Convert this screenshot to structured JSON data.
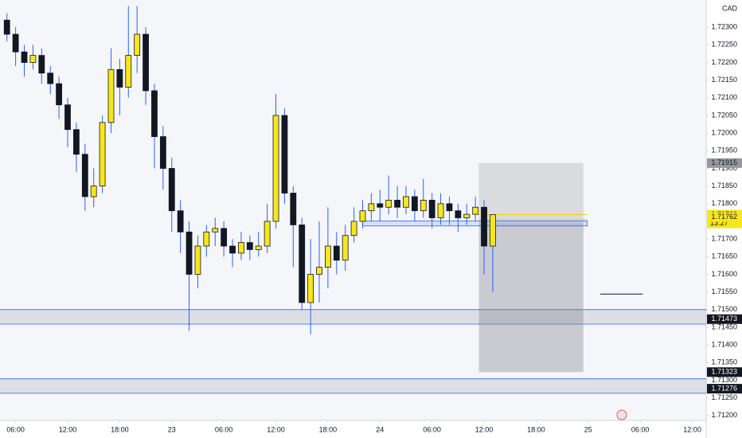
{
  "chart_data": {
    "type": "candlestick",
    "currency": "CAD",
    "xlim": [
      4.2,
      85.6
    ],
    "ylim": [
      1.71186,
      1.72377
    ],
    "xticks": [
      {
        "value": 6,
        "label": "06:00"
      },
      {
        "value": 12,
        "label": "12:00"
      },
      {
        "value": 18,
        "label": "18:00"
      },
      {
        "value": 24,
        "label": "23"
      },
      {
        "value": 30,
        "label": "06:00"
      },
      {
        "value": 36,
        "label": "12:00"
      },
      {
        "value": 42,
        "label": "18:00"
      },
      {
        "value": 48,
        "label": "24"
      },
      {
        "value": 54,
        "label": "06:00"
      },
      {
        "value": 60,
        "label": "12:00"
      },
      {
        "value": 66,
        "label": "18:00"
      },
      {
        "value": 72,
        "label": "25"
      },
      {
        "value": 78,
        "label": "06:00"
      },
      {
        "value": 84,
        "label": "12:00"
      }
    ],
    "yticks": [
      {
        "value": 1.723,
        "label": "1.72300"
      },
      {
        "value": 1.7225,
        "label": "1.72250"
      },
      {
        "value": 1.722,
        "label": "1.72200"
      },
      {
        "value": 1.7215,
        "label": "1.72150"
      },
      {
        "value": 1.721,
        "label": "1.72100"
      },
      {
        "value": 1.7205,
        "label": "1.72050"
      },
      {
        "value": 1.72,
        "label": "1.72000"
      },
      {
        "value": 1.7195,
        "label": "1.71950"
      },
      {
        "value": 1.719,
        "label": "1.71900"
      },
      {
        "value": 1.7185,
        "label": "1.71850"
      },
      {
        "value": 1.718,
        "label": "1.71800"
      },
      {
        "value": 1.717,
        "label": "1.71700"
      },
      {
        "value": 1.7165,
        "label": "1.71650"
      },
      {
        "value": 1.716,
        "label": "1.71600"
      },
      {
        "value": 1.7155,
        "label": "1.71550"
      },
      {
        "value": 1.715,
        "label": "1.71500"
      },
      {
        "value": 1.7145,
        "label": "1.71450"
      },
      {
        "value": 1.714,
        "label": "1.71400"
      },
      {
        "value": 1.7135,
        "label": "1.71350"
      },
      {
        "value": 1.713,
        "label": "1.71300"
      },
      {
        "value": 1.7125,
        "label": "1.71250"
      },
      {
        "value": 1.712,
        "label": "1.71200"
      }
    ],
    "grid": false,
    "up_color": "#f7e61b",
    "down_color": "#131722",
    "wick_color": "#2962ff",
    "x": [
      5,
      6,
      7,
      8,
      9,
      10,
      11,
      12,
      13,
      14,
      15,
      16,
      17,
      18,
      19,
      20,
      21,
      22,
      23,
      24,
      25,
      26,
      27,
      28,
      29,
      30,
      31,
      32,
      33,
      34,
      35,
      36,
      37,
      38,
      39,
      40,
      41,
      42,
      43,
      44,
      45,
      46,
      47,
      48,
      49,
      50,
      51,
      52,
      53,
      54,
      55,
      56,
      57,
      58,
      59,
      60,
      61
    ],
    "open": [
      1.7232,
      1.7228,
      1.7223,
      1.722,
      1.7222,
      1.7217,
      1.7214,
      1.7208,
      1.7201,
      1.7194,
      1.7182,
      1.7185,
      1.7203,
      1.7218,
      1.7213,
      1.7222,
      1.7228,
      1.7212,
      1.7199,
      1.719,
      1.7178,
      1.7172,
      1.716,
      1.7168,
      1.7172,
      1.7173,
      1.7168,
      1.7166,
      1.7169,
      1.7167,
      1.7168,
      1.7175,
      1.7205,
      1.7183,
      1.7174,
      1.7152,
      1.716,
      1.7162,
      1.7168,
      1.7164,
      1.7171,
      1.7175,
      1.7178,
      1.718,
      1.7179,
      1.7181,
      1.7179,
      1.7182,
      1.7178,
      1.7181,
      1.7176,
      1.718,
      1.7178,
      1.7176,
      1.7177,
      1.7179,
      1.7168
    ],
    "high": [
      1.7234,
      1.723,
      1.7225,
      1.7225,
      1.7224,
      1.7219,
      1.7216,
      1.721,
      1.7203,
      1.7197,
      1.719,
      1.7205,
      1.7224,
      1.7221,
      1.7236,
      1.7236,
      1.723,
      1.7214,
      1.7202,
      1.7193,
      1.7181,
      1.7175,
      1.7171,
      1.7174,
      1.7176,
      1.7175,
      1.717,
      1.7172,
      1.7171,
      1.7172,
      1.718,
      1.7211,
      1.7207,
      1.7185,
      1.7176,
      1.717,
      1.7175,
      1.7179,
      1.7172,
      1.7174,
      1.7179,
      1.7181,
      1.7183,
      1.7184,
      1.7188,
      1.7185,
      1.7185,
      1.7184,
      1.7187,
      1.7183,
      1.7183,
      1.7182,
      1.718,
      1.718,
      1.7182,
      1.7181,
      1.71769
    ],
    "low": [
      1.7226,
      1.7219,
      1.7216,
      1.7218,
      1.7214,
      1.7211,
      1.7204,
      1.7196,
      1.7189,
      1.7178,
      1.7179,
      1.7183,
      1.72,
      1.7205,
      1.721,
      1.7217,
      1.7208,
      1.719,
      1.7184,
      1.7172,
      1.7166,
      1.7144,
      1.7156,
      1.7165,
      1.7168,
      1.7165,
      1.7162,
      1.7164,
      1.7164,
      1.7165,
      1.7166,
      1.7173,
      1.718,
      1.7162,
      1.715,
      1.7143,
      1.7152,
      1.7156,
      1.716,
      1.7161,
      1.7169,
      1.7173,
      1.7175,
      1.7175,
      1.7177,
      1.7176,
      1.7177,
      1.7175,
      1.7176,
      1.7173,
      1.7174,
      1.7174,
      1.7172,
      1.7174,
      1.7175,
      1.716,
      1.7155
    ],
    "close": [
      1.7228,
      1.7223,
      1.722,
      1.7222,
      1.7217,
      1.7214,
      1.7208,
      1.7201,
      1.7194,
      1.7182,
      1.7185,
      1.7203,
      1.7218,
      1.7213,
      1.7222,
      1.7228,
      1.7212,
      1.7199,
      1.719,
      1.7178,
      1.7172,
      1.716,
      1.7168,
      1.7172,
      1.7173,
      1.7168,
      1.7166,
      1.7169,
      1.7167,
      1.7168,
      1.7175,
      1.7205,
      1.7183,
      1.7174,
      1.7152,
      1.716,
      1.7162,
      1.7168,
      1.7164,
      1.7171,
      1.7175,
      1.7178,
      1.718,
      1.7179,
      1.7181,
      1.7179,
      1.7182,
      1.7178,
      1.7181,
      1.7176,
      1.718,
      1.7178,
      1.7176,
      1.7177,
      1.7179,
      1.7168,
      1.71769
    ],
    "zones": [
      [
        1.715,
        1.71459
      ],
      [
        1.71304,
        1.71263
      ]
    ],
    "position_box": {
      "x": [
        59.4,
        71.45
      ],
      "top": 1.71915,
      "entry": 1.71745,
      "bottom": 1.71323
    },
    "range_box": {
      "x": [
        46,
        71.9
      ],
      "top": 1.71751,
      "bottom": 1.71737
    },
    "entry_lines": {
      "x": [
        59.3,
        71.9
      ],
      "prices": [
        1.71769,
        1.71755
      ]
    },
    "marker_line": {
      "x": [
        73.4,
        78.3
      ],
      "price": 1.71544
    },
    "price_tags": [
      {
        "price": 1.71915,
        "color": "#9598a1",
        "text_color": "#131722"
      },
      {
        "price": 1.71769,
        "color": "#f7e61b",
        "text_color": "#131722"
      },
      {
        "price": 1.71762,
        "color": "#f7e61b",
        "text_color": "#131722"
      },
      {
        "price": 1.71473,
        "color": "#131722",
        "text_color": "#ffffff"
      },
      {
        "price": 1.71323,
        "color": "#131722",
        "text_color": "#ffffff"
      },
      {
        "price": 1.71276,
        "color": "#131722",
        "text_color": "#ffffff"
      }
    ],
    "countdown": "13:27"
  }
}
